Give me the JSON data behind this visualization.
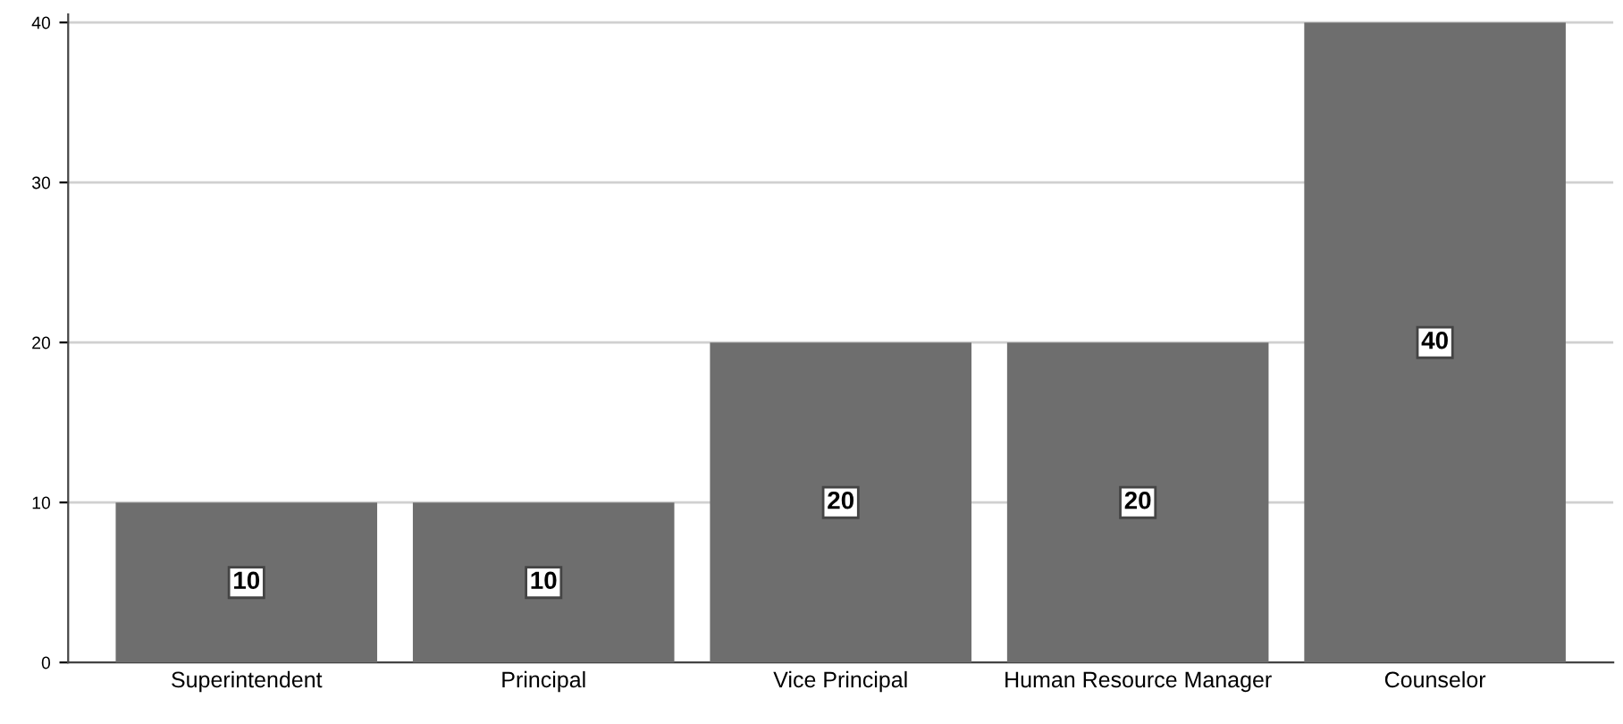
{
  "chart_data": {
    "type": "bar",
    "categories": [
      "Superintendent",
      "Principal",
      "Vice Principal",
      "Human Resource Manager",
      "Counselor"
    ],
    "values": [
      10,
      10,
      20,
      20,
      40
    ],
    "color": "#6e6e6e",
    "ylim": [
      0,
      40.5
    ],
    "yticks": [
      0,
      10,
      20,
      30,
      40
    ],
    "grid": "y",
    "data_labels": true
  }
}
